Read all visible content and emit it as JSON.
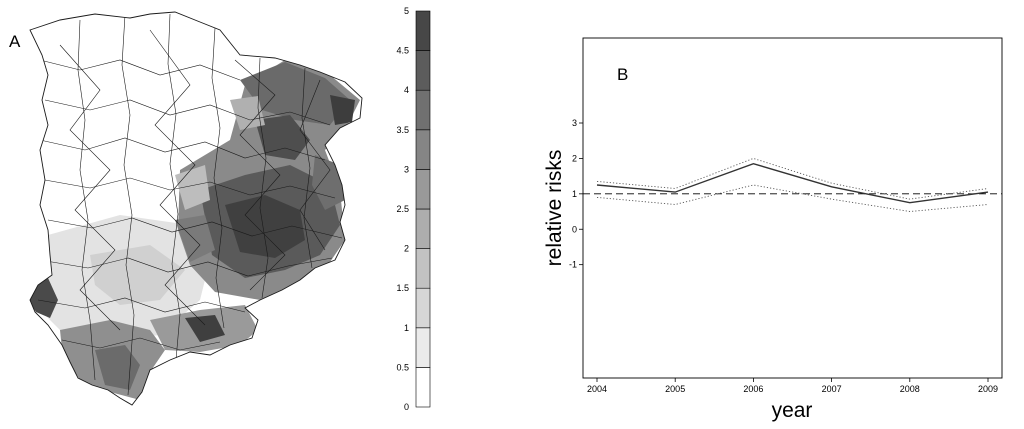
{
  "panels": {
    "a_label": "A",
    "b_label": "B"
  },
  "map_legend": {
    "ticks": [
      "0",
      "0.5",
      "1",
      "1.5",
      "2",
      "2.5",
      "3",
      "3.5",
      "4",
      "4.5",
      "5"
    ],
    "range": [
      0,
      5
    ],
    "classes": 10,
    "colors": [
      "#ffffff",
      "#ebebeb",
      "#d6d6d6",
      "#c2c2c2",
      "#adadad",
      "#999999",
      "#858585",
      "#707070",
      "#5c5c5c",
      "#474747"
    ]
  },
  "chart_data": {
    "type": "line",
    "x": [
      2004,
      2005,
      2006,
      2007,
      2008,
      2009
    ],
    "xticks": [
      "2004",
      "2005",
      "2006",
      "2007",
      "2008",
      "2009"
    ],
    "yticks": [
      "-1",
      "0",
      "1",
      "2",
      "3"
    ],
    "xlabel": "year",
    "ylabel": "relative risks",
    "ylim": [
      -4.2,
      5.4
    ],
    "reference_line": 1,
    "series": [
      {
        "style": "solid",
        "values": [
          1.25,
          1.05,
          1.85,
          1.2,
          0.75,
          1.05
        ]
      },
      {
        "style": "dotted",
        "values": [
          1.35,
          1.15,
          2.0,
          1.3,
          0.85,
          1.15
        ]
      },
      {
        "style": "dotted",
        "values": [
          0.9,
          0.7,
          1.25,
          0.85,
          0.5,
          0.7
        ]
      }
    ],
    "grid": false,
    "legend": "none"
  }
}
